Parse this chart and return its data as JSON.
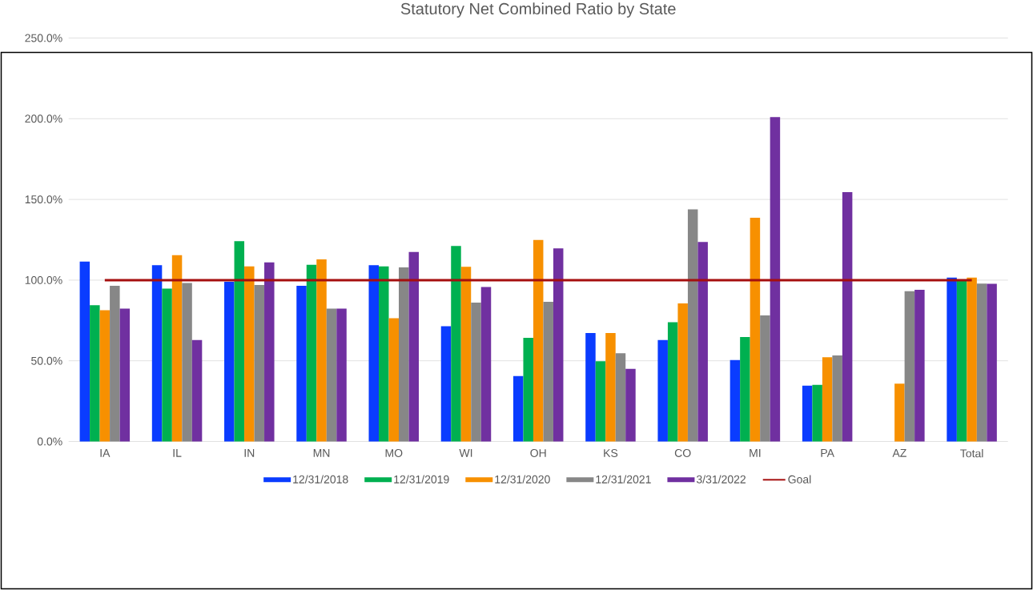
{
  "chart_data": {
    "type": "bar",
    "title": "Statutory Net Combined Ratio by State",
    "categories": [
      "IA",
      "IL",
      "IN",
      "MN",
      "MO",
      "WI",
      "OH",
      "KS",
      "CO",
      "MI",
      "PA",
      "AZ",
      "Total"
    ],
    "series": [
      {
        "name": "12/31/2018",
        "color": "#0a3cff",
        "values": [
          111.5,
          109.2,
          99,
          96.5,
          109.2,
          71.4,
          40.5,
          67.2,
          62.9,
          50.5,
          34.6,
          null,
          101.5
        ]
      },
      {
        "name": "12/31/2019",
        "color": "#00b050",
        "values": [
          84.4,
          94.8,
          124.1,
          109.5,
          108.5,
          121.2,
          64.2,
          49.7,
          73.9,
          64.7,
          35.1,
          null,
          99.8
        ]
      },
      {
        "name": "12/31/2020",
        "color": "#f79000",
        "values": [
          81.4,
          115.4,
          108.5,
          112.9,
          76.4,
          108.2,
          124.9,
          67.2,
          85.6,
          138.6,
          52.2,
          35.8,
          101.5
        ]
      },
      {
        "name": "12/31/2021",
        "color": "#878787",
        "values": [
          96.5,
          98.2,
          97,
          82.3,
          107.9,
          86,
          86.5,
          54.7,
          143.8,
          78.1,
          53.3,
          93.1,
          97.8
        ]
      },
      {
        "name": "3/31/2022",
        "color": "#7030a0",
        "values": [
          82.3,
          62.9,
          111,
          82.3,
          117.4,
          95.7,
          119.7,
          45,
          123.6,
          201,
          154.5,
          94,
          97.7
        ]
      },
      {
        "name": "Goal",
        "type": "line",
        "color": "#a50f0f",
        "values": [
          100,
          100,
          100,
          100,
          100,
          100,
          100,
          100,
          100,
          100,
          100,
          100,
          100
        ]
      }
    ],
    "ylim": [
      0,
      250
    ],
    "yticks": [
      {
        "value": 0,
        "label": "0.0%"
      },
      {
        "value": 50,
        "label": "50.0%"
      },
      {
        "value": 100,
        "label": "100.0%"
      },
      {
        "value": 150,
        "label": "150.0%"
      },
      {
        "value": 200,
        "label": "200.0%"
      },
      {
        "value": 250,
        "label": "250.0%"
      }
    ],
    "grid": "y",
    "legend": "bottom"
  }
}
